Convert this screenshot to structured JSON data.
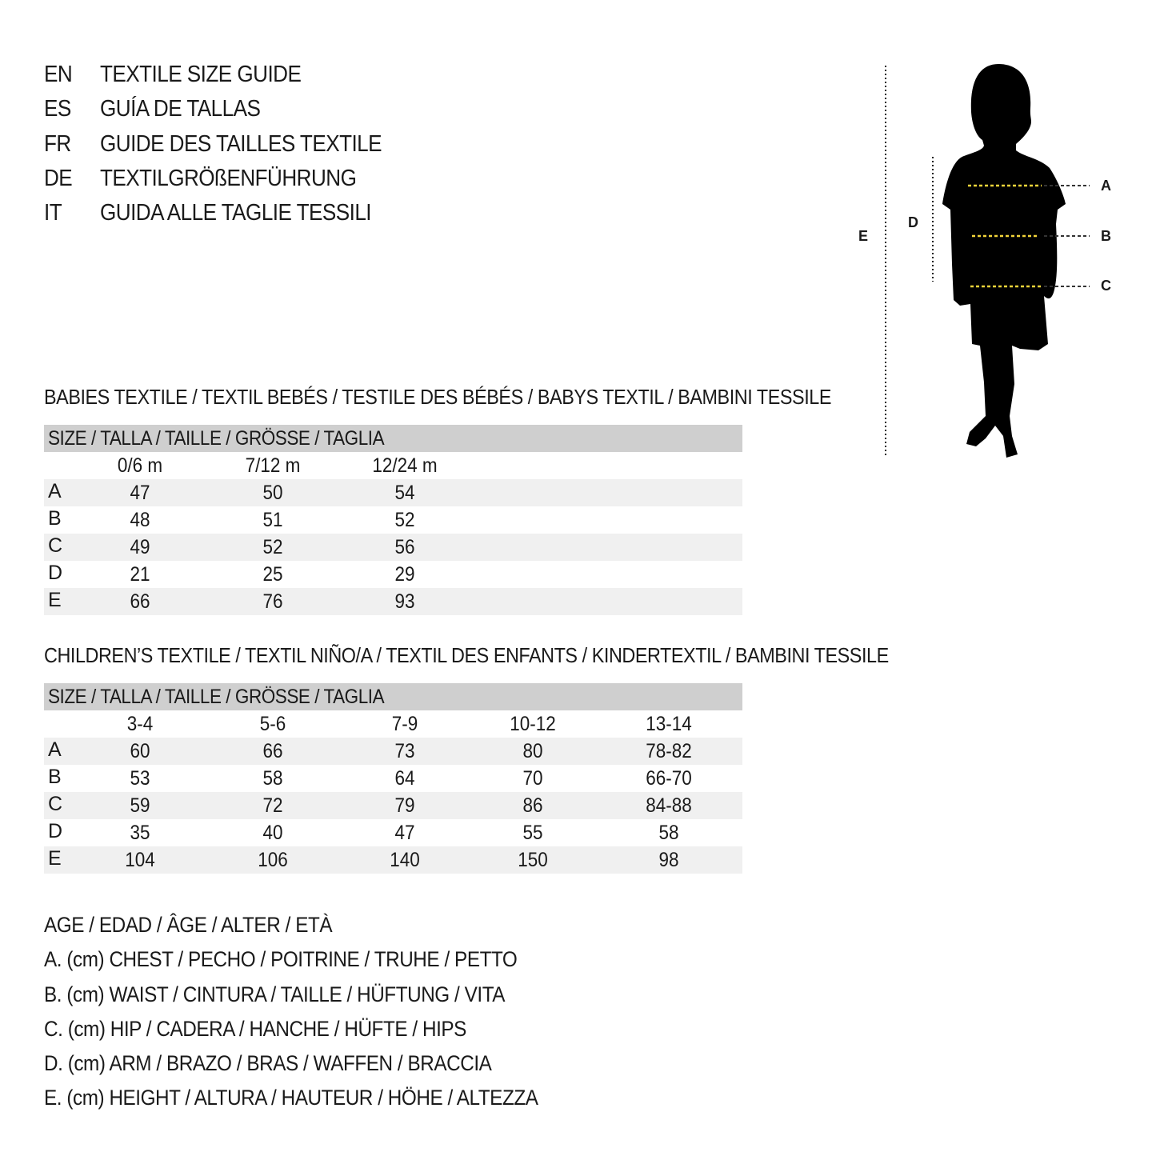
{
  "titles": [
    {
      "code": "EN",
      "text": "TEXTILE SIZE GUIDE"
    },
    {
      "code": "ES",
      "text": "GUÍA DE TALLAS"
    },
    {
      "code": "FR",
      "text": "GUIDE DES TAILLES TEXTILE"
    },
    {
      "code": "DE",
      "text": "TEXTILGRÖßENFÜHRUNG"
    },
    {
      "code": "IT",
      "text": "GUIDA ALLE TAGLIE TESSILI"
    }
  ],
  "figure": {
    "labels": {
      "A": "A",
      "B": "B",
      "C": "C",
      "D": "D",
      "E": "E"
    },
    "measure_line_color": "#f2d33a"
  },
  "babies": {
    "heading": "BABIES TEXTILE / TEXTIL BEBÉS / TESTILE DES BÉBÉS / BABYS TEXTIL / BAMBINI TESSILE",
    "size_header": "SIZE / TALLA / TAILLE / GRÖSSE / TAGLIA",
    "columns": [
      "0/6 m",
      "7/12 m",
      "12/24 m"
    ],
    "rows": [
      {
        "label": "A",
        "values": [
          "47",
          "50",
          "54"
        ]
      },
      {
        "label": "B",
        "values": [
          "48",
          "51",
          "52"
        ]
      },
      {
        "label": "C",
        "values": [
          "49",
          "52",
          "56"
        ]
      },
      {
        "label": "D",
        "values": [
          "21",
          "25",
          "29"
        ]
      },
      {
        "label": "E",
        "values": [
          "66",
          "76",
          "93"
        ]
      }
    ]
  },
  "children": {
    "heading": "CHILDREN’S TEXTILE / TEXTIL NIÑO/A / TEXTIL DES ENFANTS / KINDERTEXTIL / BAMBINI TESSILE",
    "size_header": "SIZE / TALLA / TAILLE / GRÖSSE / TAGLIA",
    "columns": [
      "3-4",
      "5-6",
      "7-9",
      "10-12",
      "13-14"
    ],
    "rows": [
      {
        "label": "A",
        "values": [
          "60",
          "66",
          "73",
          "80",
          "78-82"
        ]
      },
      {
        "label": "B",
        "values": [
          "53",
          "58",
          "64",
          "70",
          "66-70"
        ]
      },
      {
        "label": "C",
        "values": [
          "59",
          "72",
          "79",
          "86",
          "84-88"
        ]
      },
      {
        "label": "D",
        "values": [
          "35",
          "40",
          "47",
          "55",
          "58"
        ]
      },
      {
        "label": "E",
        "values": [
          "104",
          "106",
          "140",
          "150",
          "98"
        ]
      }
    ]
  },
  "legend": [
    "AGE / EDAD / ÂGE / ALTER / ETÀ",
    "A. (cm) CHEST / PECHO / POITRINE / TRUHE / PETTO",
    "B. (cm) WAIST / CINTURA / TAILLE / HÜFTUNG / VITA",
    "C. (cm) HIP / CADERA / HANCHE / HÜFTE / HIPS",
    "D. (cm) ARM / BRAZO / BRAS / WAFFEN / BRACCIA",
    "E. (cm) HEIGHT / ALTURA / HAUTEUR / HÖHE / ALTEZZA"
  ]
}
